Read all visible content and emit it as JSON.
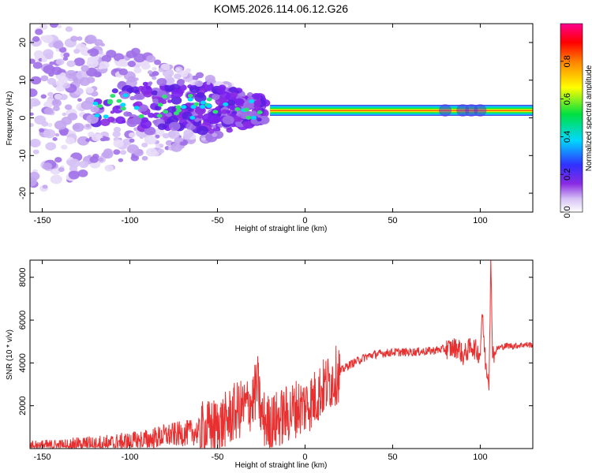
{
  "title": "KOM5.2026.114.06.12.G26",
  "chart_data": [
    {
      "type": "heatmap",
      "xlabel": "Height of straight line (km)",
      "ylabel": "Frequency (Hz)",
      "xlim": [
        -157,
        130
      ],
      "ylim": [
        -25,
        25
      ],
      "xticks": [
        -150,
        -100,
        -50,
        0,
        50,
        100
      ],
      "yticks": [
        -20,
        -10,
        0,
        10,
        20
      ],
      "colorbar": {
        "label": "Normalized spectral amplitude",
        "range": [
          0.0,
          1.0
        ],
        "ticks": [
          0.0,
          0.2,
          0.4,
          0.6,
          0.8
        ],
        "colormap": "rainbow (violet-blue-cyan-green-yellow-red-magenta)"
      },
      "dominant_band": {
        "description": "high-amplitude band near 2 Hz from about -20 km to 130 km; scattered low-amplitude energy between -157 and -25 km",
        "frequency_hz": 2,
        "x_start_km": -20,
        "x_end_km": 130
      },
      "grid": false
    },
    {
      "type": "line",
      "xlabel": "Height of straight line (km)",
      "ylabel": "SNR (10 * v/v)",
      "xlim": [
        -157,
        130
      ],
      "ylim": [
        0,
        8800
      ],
      "xticks": [
        -150,
        -100,
        -50,
        0,
        50,
        100
      ],
      "yticks": [
        2000,
        4000,
        6000,
        8000
      ],
      "color": "#e83030",
      "series": [
        {
          "x": [
            -157,
            -140,
            -125,
            -110,
            -100,
            -90,
            -80,
            -70,
            -60,
            -50,
            -45,
            -40,
            -35,
            -30,
            -27,
            -25,
            -20,
            -15,
            -10,
            -5,
            0,
            5,
            10,
            15,
            20,
            25,
            30,
            35,
            40,
            50,
            60,
            70,
            80,
            85,
            88,
            90,
            95,
            100,
            101,
            103,
            105,
            106,
            107,
            108,
            110,
            115,
            120,
            125,
            130
          ],
          "y": [
            150,
            120,
            200,
            250,
            300,
            400,
            600,
            700,
            800,
            1000,
            1300,
            1700,
            1900,
            2200,
            3000,
            1500,
            1100,
            1400,
            1600,
            1900,
            2000,
            2300,
            2800,
            3200,
            3600,
            3900,
            4100,
            4300,
            4400,
            4500,
            4500,
            4550,
            4650,
            4700,
            4700,
            4300,
            4800,
            4400,
            6400,
            4000,
            3200,
            8600,
            4700,
            4400,
            4700,
            4800,
            4800,
            4850,
            4850
          ]
        }
      ],
      "grid": false
    }
  ]
}
